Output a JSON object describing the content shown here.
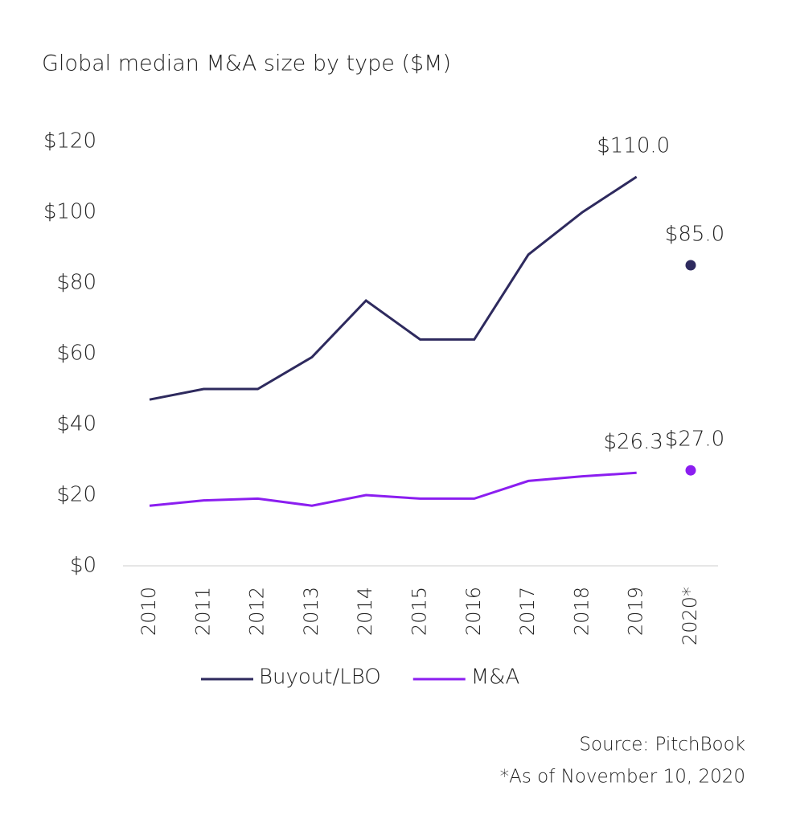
{
  "chart_data": {
    "type": "line",
    "title": "Global median M&A size by type ($M)",
    "categories": [
      "2010",
      "2011",
      "2012",
      "2013",
      "2014",
      "2015",
      "2016",
      "2017",
      "2018",
      "2019",
      "2020*"
    ],
    "series": [
      {
        "name": "Buyout/LBO",
        "color": "#2e2a5e",
        "values": [
          47,
          50,
          50,
          59,
          75,
          64,
          64,
          88,
          100,
          110,
          85
        ],
        "value_labels": [
          null,
          null,
          null,
          null,
          null,
          null,
          null,
          null,
          null,
          "$110.0",
          "$85.0"
        ]
      },
      {
        "name": "M&A",
        "color": "#8b1ef0",
        "values": [
          17,
          18.5,
          19,
          17,
          20,
          19,
          19,
          24,
          25.3,
          26.3,
          27
        ],
        "value_labels": [
          null,
          null,
          null,
          null,
          null,
          null,
          null,
          null,
          null,
          "$26.3",
          "$27.0"
        ]
      }
    ],
    "last_point_separate": true,
    "ylim": [
      0,
      120
    ],
    "yticks": [
      {
        "value": 0,
        "label": "$0"
      },
      {
        "value": 20,
        "label": "$20"
      },
      {
        "value": 40,
        "label": "$40"
      },
      {
        "value": 60,
        "label": "$60"
      },
      {
        "value": 80,
        "label": "$80"
      },
      {
        "value": 100,
        "label": "$100"
      },
      {
        "value": 120,
        "label": "$120"
      }
    ],
    "legend": "bottom",
    "source": "Source: PitchBook",
    "note": "*As of November 10, 2020"
  }
}
